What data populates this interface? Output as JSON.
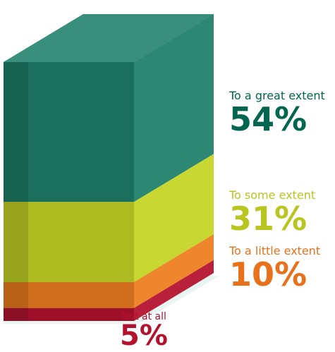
{
  "chart_data": {
    "type": "bar",
    "style": "3d-stacked-box",
    "categories": [
      "To a great extent",
      "To some extent",
      "To a little extent",
      "Not at all"
    ],
    "values": [
      54,
      31,
      10,
      5
    ],
    "value_labels": [
      "54%",
      "31%",
      "10%",
      "5%"
    ],
    "unit": "%",
    "title": "",
    "xlabel": "",
    "ylabel": "",
    "legend": "none",
    "grid": false,
    "colors": [
      "#1e7f6a",
      "#c5d424",
      "#ee7d1f",
      "#b3122f"
    ]
  }
}
